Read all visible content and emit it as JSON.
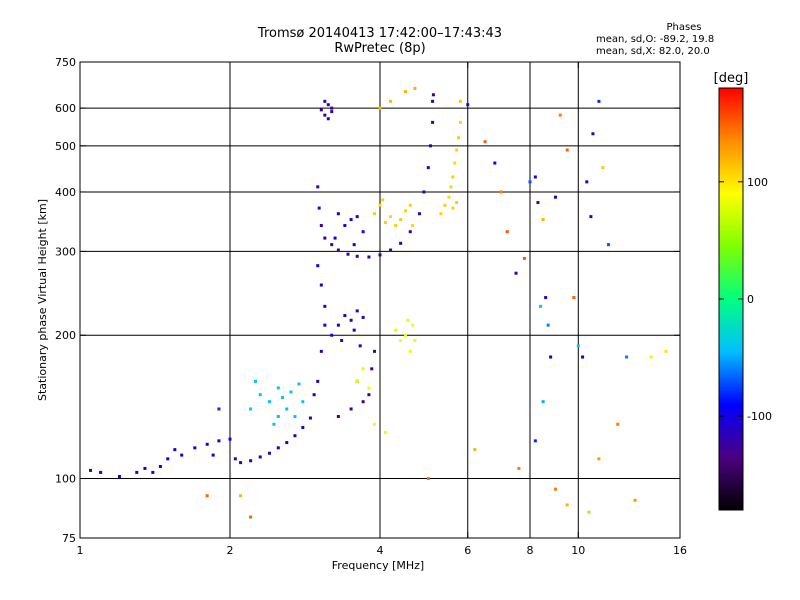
{
  "chart_data": {
    "type": "scatter",
    "title": "Tromsø 20140413 17:42:00–17:43:43",
    "subtitle": "RwPretec (8p)",
    "xlabel": "Frequency [MHz]",
    "ylabel": "Stationary phase Virtual Height [km]",
    "x_scale": "log",
    "y_scale": "log",
    "xlim": [
      1,
      16
    ],
    "ylim": [
      75,
      750
    ],
    "x_ticks": [
      1,
      2,
      4,
      6,
      8,
      10,
      16
    ],
    "y_ticks": [
      75,
      100,
      200,
      300,
      400,
      500,
      600,
      750
    ],
    "x_gridlines": [
      2,
      4,
      6,
      8,
      10
    ],
    "y_gridlines": [
      100,
      200,
      300,
      400,
      500,
      600
    ],
    "grid": true,
    "colorbar": {
      "label": "[deg]",
      "range": [
        -180,
        180
      ],
      "ticks": [
        100,
        0,
        -100
      ],
      "colormap": [
        "#000000",
        "#4b0082",
        "#0000ff",
        "#00bfff",
        "#00ff7f",
        "#7fff00",
        "#ffff00",
        "#ff8c00",
        "#ff0000"
      ]
    },
    "stats_header": "Phases",
    "stats": [
      "mean, sd,O: -89.2, 19.8",
      "mean, sd,X: 82.0, 20.0"
    ],
    "series": [
      {
        "points": [
          [
            1.05,
            104,
            -110
          ],
          [
            1.1,
            103,
            -105
          ],
          [
            1.2,
            101,
            -110
          ],
          [
            1.3,
            103,
            -100
          ],
          [
            1.35,
            105,
            -108
          ],
          [
            1.4,
            103,
            -112
          ],
          [
            1.45,
            106,
            -100
          ],
          [
            1.5,
            110,
            -105
          ],
          [
            1.55,
            115,
            -100
          ],
          [
            1.6,
            112,
            -108
          ],
          [
            1.7,
            116,
            -102
          ],
          [
            1.8,
            118,
            -110
          ],
          [
            1.85,
            112,
            -100
          ],
          [
            1.9,
            120,
            -95
          ],
          [
            2.0,
            121,
            -100
          ],
          [
            2.05,
            110,
            -120
          ],
          [
            2.1,
            108,
            -115
          ],
          [
            2.2,
            109,
            -112
          ],
          [
            2.3,
            111,
            -110
          ],
          [
            2.4,
            113,
            -115
          ],
          [
            2.5,
            116,
            -110
          ],
          [
            2.6,
            119,
            -108
          ],
          [
            2.7,
            123,
            -110
          ],
          [
            2.8,
            128,
            -105
          ],
          [
            2.9,
            134,
            -110
          ],
          [
            2.95,
            150,
            -100
          ],
          [
            3.0,
            160,
            -110
          ],
          [
            3.05,
            185,
            -105
          ],
          [
            3.1,
            210,
            -100
          ],
          [
            3.1,
            230,
            -110
          ],
          [
            3.05,
            255,
            -105
          ],
          [
            3.0,
            280,
            -100
          ]
        ]
      },
      {
        "points": [
          [
            3.05,
            595,
            -120
          ],
          [
            3.1,
            580,
            -118
          ],
          [
            3.15,
            570,
            -122
          ],
          [
            3.2,
            590,
            -120
          ],
          [
            3.15,
            610,
            -118
          ],
          [
            3.1,
            620,
            -120
          ],
          [
            3.2,
            600,
            -125
          ]
        ]
      },
      {
        "points": [
          [
            3.0,
            410,
            -120
          ],
          [
            3.02,
            370,
            -118
          ],
          [
            3.05,
            340,
            -120
          ],
          [
            3.1,
            320,
            -122
          ],
          [
            3.2,
            310,
            -120
          ],
          [
            3.3,
            302,
            -118
          ],
          [
            3.45,
            296,
            -120
          ],
          [
            3.6,
            293,
            -122
          ],
          [
            3.8,
            292,
            -120
          ],
          [
            4.0,
            295,
            -118
          ],
          [
            4.2,
            302,
            -120
          ],
          [
            4.4,
            312,
            -122
          ],
          [
            4.6,
            330,
            -120
          ],
          [
            4.8,
            360,
            -118
          ],
          [
            4.9,
            400,
            -120
          ],
          [
            5.0,
            450,
            -122
          ],
          [
            5.05,
            500,
            -120
          ],
          [
            5.1,
            560,
            -118
          ],
          [
            5.1,
            620,
            -120
          ],
          [
            5.12,
            640,
            -122
          ]
        ]
      },
      {
        "points": [
          [
            3.25,
            320,
            -105
          ],
          [
            3.4,
            340,
            -108
          ],
          [
            3.5,
            350,
            -110
          ],
          [
            3.6,
            355,
            -112
          ],
          [
            3.3,
            360,
            -110
          ],
          [
            3.7,
            330,
            -108
          ],
          [
            3.55,
            310,
            -105
          ]
        ]
      },
      {
        "points": [
          [
            3.2,
            200,
            -115
          ],
          [
            3.3,
            210,
            -110
          ],
          [
            3.4,
            220,
            -115
          ],
          [
            3.5,
            215,
            -110
          ],
          [
            3.6,
            225,
            -118
          ],
          [
            3.7,
            218,
            -115
          ],
          [
            3.35,
            195,
            -120
          ],
          [
            3.55,
            205,
            -112
          ],
          [
            3.65,
            190,
            -115
          ]
        ]
      },
      {
        "points": [
          [
            3.3,
            135,
            -140
          ],
          [
            3.5,
            140,
            -135
          ],
          [
            3.7,
            145,
            -140
          ],
          [
            3.8,
            150,
            -138
          ],
          [
            3.6,
            160,
            -130
          ],
          [
            3.85,
            170,
            -128
          ],
          [
            3.9,
            185,
            -130
          ]
        ]
      },
      {
        "points": [
          [
            2.3,
            150,
            -40
          ],
          [
            2.4,
            145,
            -42
          ],
          [
            2.5,
            155,
            -38
          ],
          [
            2.55,
            148,
            -40
          ],
          [
            2.6,
            140,
            -45
          ],
          [
            2.65,
            152,
            -40
          ],
          [
            2.2,
            140,
            -38
          ],
          [
            2.25,
            160,
            -40
          ],
          [
            2.5,
            135,
            -42
          ],
          [
            2.7,
            135,
            -40
          ],
          [
            2.8,
            145,
            -38
          ],
          [
            2.75,
            158,
            -40
          ],
          [
            2.45,
            130,
            -40
          ]
        ]
      },
      {
        "points": [
          [
            3.9,
            360,
            110
          ],
          [
            4.0,
            375,
            105
          ],
          [
            4.05,
            385,
            108
          ],
          [
            4.1,
            345,
            110
          ],
          [
            4.2,
            355,
            105
          ],
          [
            4.3,
            340,
            108
          ],
          [
            4.4,
            350,
            110
          ],
          [
            4.5,
            365,
            106
          ],
          [
            4.6,
            375,
            110
          ],
          [
            4.65,
            340,
            105
          ]
        ]
      },
      {
        "points": [
          [
            5.3,
            360,
            108
          ],
          [
            5.4,
            375,
            110
          ],
          [
            5.5,
            390,
            105
          ],
          [
            5.55,
            410,
            108
          ],
          [
            5.6,
            430,
            110
          ],
          [
            5.65,
            460,
            105
          ],
          [
            5.7,
            490,
            108
          ],
          [
            5.75,
            520,
            110
          ],
          [
            5.8,
            560,
            106
          ],
          [
            5.6,
            370,
            108
          ],
          [
            5.7,
            380,
            110
          ]
        ]
      },
      {
        "points": [
          [
            4.3,
            205,
            80
          ],
          [
            4.4,
            195,
            85
          ],
          [
            4.5,
            200,
            82
          ],
          [
            4.6,
            185,
            80
          ],
          [
            4.65,
            210,
            84
          ],
          [
            4.7,
            195,
            80
          ],
          [
            4.55,
            215,
            82
          ]
        ]
      },
      {
        "points": [
          [
            3.9,
            130,
            85
          ],
          [
            4.1,
            125,
            80
          ],
          [
            3.8,
            155,
            85
          ],
          [
            3.6,
            160,
            82
          ],
          [
            3.7,
            170,
            80
          ],
          [
            4.0,
            600,
            120
          ],
          [
            4.2,
            620,
            118
          ],
          [
            4.5,
            650,
            120
          ],
          [
            4.7,
            660,
            122
          ],
          [
            5.8,
            620,
            112
          ]
        ]
      },
      {
        "points": [
          [
            6.0,
            610,
            -120
          ],
          [
            6.5,
            510,
            150
          ],
          [
            6.8,
            460,
            -100
          ],
          [
            7.0,
            400,
            140
          ],
          [
            7.2,
            330,
            155
          ],
          [
            7.5,
            270,
            -120
          ],
          [
            7.8,
            290,
            150
          ],
          [
            8.0,
            420,
            -70
          ],
          [
            8.2,
            430,
            -110
          ],
          [
            8.3,
            380,
            -130
          ],
          [
            8.4,
            230,
            -40
          ],
          [
            8.5,
            350,
            120
          ],
          [
            8.6,
            240,
            -110
          ],
          [
            8.7,
            210,
            -60
          ],
          [
            8.8,
            180,
            -90
          ],
          [
            9.0,
            390,
            -110
          ],
          [
            9.2,
            580,
            140
          ],
          [
            9.5,
            490,
            150
          ],
          [
            9.8,
            240,
            150
          ],
          [
            10.0,
            190,
            -40
          ],
          [
            10.2,
            180,
            -90
          ],
          [
            10.4,
            420,
            -110
          ],
          [
            10.6,
            355,
            -110
          ],
          [
            10.7,
            530,
            -120
          ],
          [
            11.0,
            620,
            -80
          ],
          [
            11.2,
            450,
            110
          ],
          [
            11.5,
            310,
            -70
          ],
          [
            12.0,
            130,
            140
          ],
          [
            12.5,
            180,
            -60
          ],
          [
            13.0,
            90,
            130
          ],
          [
            14.0,
            180,
            95
          ],
          [
            15.0,
            185,
            100
          ],
          [
            9.0,
            95,
            140
          ],
          [
            9.5,
            88,
            120
          ],
          [
            10.5,
            85,
            50
          ],
          [
            11.0,
            110,
            130
          ],
          [
            8.5,
            145,
            -50
          ],
          [
            8.2,
            120,
            -80
          ],
          [
            7.6,
            105,
            140
          ],
          [
            6.2,
            115,
            120
          ],
          [
            5.0,
            100,
            145
          ],
          [
            2.2,
            83,
            150
          ],
          [
            2.1,
            92,
            120
          ],
          [
            1.8,
            92,
            150
          ],
          [
            1.9,
            140,
            -80
          ]
        ]
      }
    ]
  }
}
